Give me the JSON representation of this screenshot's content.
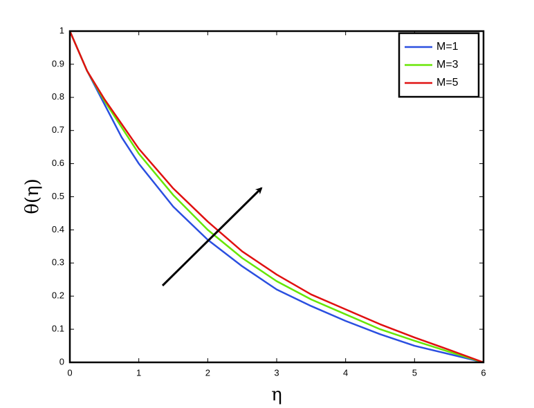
{
  "chart_data": {
    "type": "line",
    "x_label": "η",
    "y_label": "θ(η)",
    "x": [
      0,
      0.25,
      0.5,
      0.75,
      1,
      1.5,
      2,
      2.5,
      3,
      3.5,
      4,
      4.5,
      5,
      5.5,
      6
    ],
    "series": [
      {
        "name": "M=1",
        "color": "#2a4fe0",
        "values": [
          1,
          0.88,
          0.78,
          0.68,
          0.6,
          0.47,
          0.37,
          0.29,
          0.22,
          0.17,
          0.125,
          0.085,
          0.05,
          0.025,
          0
        ]
      },
      {
        "name": "M=3",
        "color": "#66e600",
        "values": [
          1,
          0.88,
          0.79,
          0.71,
          0.63,
          0.505,
          0.4,
          0.315,
          0.245,
          0.19,
          0.145,
          0.1,
          0.065,
          0.032,
          0
        ]
      },
      {
        "name": "M=5",
        "color": "#e01010",
        "values": [
          1,
          0.88,
          0.795,
          0.72,
          0.645,
          0.525,
          0.425,
          0.335,
          0.265,
          0.205,
          0.16,
          0.115,
          0.075,
          0.038,
          0
        ]
      }
    ],
    "xlim": [
      0,
      6
    ],
    "xticks": [
      0,
      1,
      2,
      3,
      4,
      5,
      6
    ],
    "ylim": [
      0,
      1
    ],
    "yticks": [
      0,
      0.1,
      0.2,
      0.3,
      0.4,
      0.5,
      0.6,
      0.7,
      0.8,
      0.9,
      1
    ],
    "grid": false,
    "legend": "upper right"
  }
}
